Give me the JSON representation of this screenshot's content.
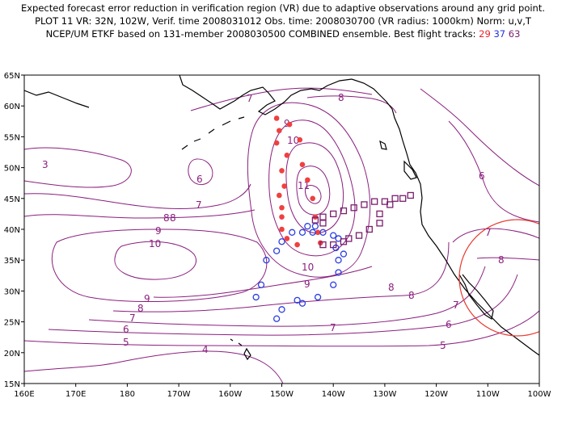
{
  "title": {
    "line1": "Expected forecast error reduction in verification region (VR) due to adaptive observations around any grid point.",
    "line2": "PLOT 11 VR: 32N, 102W, Verif. time 2008031012 Obs. time: 2008030700 (VR radius: 1000km) Norm: u,v,T",
    "line3_prefix": "NCEP/UM ETKF based on 131-member 2008030500 COMBINED ensemble.  Best flight tracks:",
    "track1": "29",
    "track2": "37",
    "track3": "63"
  },
  "map": {
    "lon_range": [
      160,
      260
    ],
    "lat_range": [
      15,
      65
    ],
    "lon_ticks": [
      "160E",
      "170E",
      "180",
      "170W",
      "160W",
      "150W",
      "140W",
      "130W",
      "120W",
      "110W",
      "100W"
    ],
    "lat_ticks": [
      "15N",
      "20N",
      "25N",
      "30N",
      "35N",
      "40N",
      "45N",
      "50N",
      "55N",
      "60N",
      "65N"
    ],
    "contour_color": "#8a1f7e",
    "verification_circle_color": "#e83a30",
    "contour_labels": [
      "7",
      "8",
      "3",
      "6",
      "7",
      "8",
      "9",
      "10",
      "9",
      "10",
      "11",
      "10",
      "9",
      "8",
      "9",
      "8",
      "7",
      "7",
      "6",
      "5",
      "4",
      "6",
      "7",
      "8",
      "7",
      "6",
      "5",
      "8",
      "8"
    ],
    "flight_tracks": [
      {
        "id": "29",
        "marker": "filled-circle",
        "color": "#f04040",
        "points": [
          [
            -151,
            58
          ],
          [
            -148.5,
            57
          ],
          [
            -150.5,
            56
          ],
          [
            -146.5,
            54.5
          ],
          [
            -151,
            54
          ],
          [
            -149,
            52
          ],
          [
            -146,
            50.5
          ],
          [
            -150,
            49.5
          ],
          [
            -145,
            48
          ],
          [
            -149.5,
            47
          ],
          [
            -150.5,
            45.5
          ],
          [
            -144,
            45
          ],
          [
            -150,
            43.5
          ],
          [
            -143.5,
            42
          ],
          [
            -150,
            42
          ],
          [
            -150,
            40
          ],
          [
            -143,
            39.5
          ],
          [
            -149,
            38.5
          ],
          [
            -147,
            37.5
          ],
          [
            -142.5,
            37.8
          ]
        ]
      },
      {
        "id": "37",
        "marker": "open-circle",
        "color": "#2a3ee0",
        "points": [
          [
            -145,
            40.5
          ],
          [
            -143.5,
            40.5
          ],
          [
            -146,
            39.5
          ],
          [
            -144,
            39.5
          ],
          [
            -148,
            39.5
          ],
          [
            -142,
            39.5
          ],
          [
            -140,
            39
          ],
          [
            -139,
            38.5
          ],
          [
            -150,
            38
          ],
          [
            -139.5,
            37
          ],
          [
            -151,
            36.5
          ],
          [
            -138,
            36
          ],
          [
            -139,
            35
          ],
          [
            -153,
            35
          ],
          [
            -139,
            33
          ],
          [
            -154,
            31
          ],
          [
            -140,
            31
          ],
          [
            -155,
            29
          ],
          [
            -143,
            29
          ],
          [
            -146,
            28
          ],
          [
            -147,
            28.5
          ],
          [
            -150,
            27
          ],
          [
            -151,
            25.5
          ]
        ]
      },
      {
        "id": "63",
        "marker": "open-square",
        "color": "#7a1e6e",
        "points": [
          [
            -125,
            45.5
          ],
          [
            -126.5,
            45
          ],
          [
            -128,
            45
          ],
          [
            -130,
            44.5
          ],
          [
            -132,
            44.5
          ],
          [
            -134,
            44
          ],
          [
            -136,
            43.5
          ],
          [
            -138,
            43
          ],
          [
            -140,
            42.5
          ],
          [
            -142,
            42
          ],
          [
            -143.5,
            41.5
          ],
          [
            -142,
            41
          ],
          [
            -131,
            41
          ],
          [
            -133,
            40
          ],
          [
            -135,
            39
          ],
          [
            -137,
            38.5
          ],
          [
            -138,
            38
          ],
          [
            -140,
            37.5
          ],
          [
            -142,
            37.5
          ],
          [
            -129,
            44
          ],
          [
            -131,
            42.5
          ]
        ]
      }
    ]
  }
}
